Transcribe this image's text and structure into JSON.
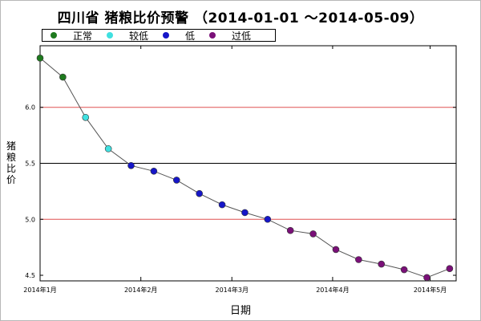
{
  "chart_data": {
    "type": "scatter",
    "title": "四川省 猪粮比价预警 （2014-01-01 ～2014-05-09）",
    "xlabel": "日期",
    "ylabel": "猪粮比价",
    "xlim": [
      "2014-01-01",
      "2014-05-09"
    ],
    "ylim": [
      4.45,
      6.55
    ],
    "yticks": [
      4.5,
      5.0,
      5.5,
      6.0
    ],
    "ytick_labels": [
      "4.5",
      "5.0",
      "5.5",
      "6.0"
    ],
    "xticks": [
      "2014-01-01",
      "2014-02-01",
      "2014-03-01",
      "2014-04-01",
      "2014-05-01"
    ],
    "xtick_labels": [
      "2014年1月",
      "2014年2月",
      "2014年3月",
      "2014年4月",
      "2014年5月"
    ],
    "reference_lines": [
      {
        "y": 6.0,
        "color": "#e05050"
      },
      {
        "y": 5.5,
        "color": "#000000"
      },
      {
        "y": 5.0,
        "color": "#e05050"
      }
    ],
    "legend": {
      "placement": "top",
      "items": [
        {
          "label": "正常",
          "color": "#1e7a1e"
        },
        {
          "label": "较低",
          "color": "#40e0e0"
        },
        {
          "label": "低",
          "color": "#1616c8"
        },
        {
          "label": "过低",
          "color": "#7a1078"
        }
      ]
    },
    "points": [
      {
        "x": "2014-01-01",
        "y": 6.44,
        "level": "正常"
      },
      {
        "x": "2014-01-08",
        "y": 6.27,
        "level": "正常"
      },
      {
        "x": "2014-01-15",
        "y": 5.91,
        "level": "较低"
      },
      {
        "x": "2014-01-22",
        "y": 5.63,
        "level": "较低"
      },
      {
        "x": "2014-01-29",
        "y": 5.48,
        "level": "低"
      },
      {
        "x": "2014-02-05",
        "y": 5.43,
        "level": "低"
      },
      {
        "x": "2014-02-12",
        "y": 5.35,
        "level": "低"
      },
      {
        "x": "2014-02-19",
        "y": 5.23,
        "level": "低"
      },
      {
        "x": "2014-02-26",
        "y": 5.13,
        "level": "低"
      },
      {
        "x": "2014-03-05",
        "y": 5.06,
        "level": "低"
      },
      {
        "x": "2014-03-12",
        "y": 5.0,
        "level": "低"
      },
      {
        "x": "2014-03-19",
        "y": 4.9,
        "level": "过低"
      },
      {
        "x": "2014-03-26",
        "y": 4.87,
        "level": "过低"
      },
      {
        "x": "2014-04-02",
        "y": 4.73,
        "level": "过低"
      },
      {
        "x": "2014-04-09",
        "y": 4.64,
        "level": "过低"
      },
      {
        "x": "2014-04-16",
        "y": 4.6,
        "level": "过低"
      },
      {
        "x": "2014-04-23",
        "y": 4.55,
        "level": "过低"
      },
      {
        "x": "2014-04-30",
        "y": 4.48,
        "level": "过低"
      },
      {
        "x": "2014-05-07",
        "y": 4.56,
        "level": "过低"
      }
    ],
    "grid": false
  }
}
